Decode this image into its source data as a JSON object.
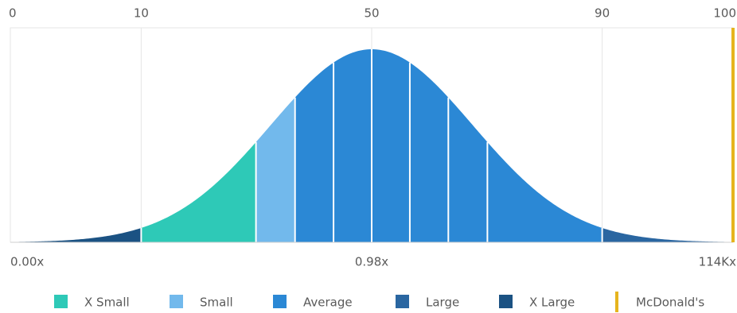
{
  "chart_data": {
    "type": "distribution",
    "xlim": [
      0,
      100
    ],
    "xticks": [
      0,
      10,
      50,
      90,
      100
    ],
    "multiple_ticks": [
      {
        "value": 0,
        "label": "0.00x"
      },
      {
        "value": 50,
        "label": "0.98x"
      },
      {
        "value": 100,
        "label": "114Kx"
      }
    ],
    "grid": true,
    "series": [
      {
        "name": "X Small",
        "color": "#2ec9b7",
        "ranges": [
          [
            10,
            26
          ]
        ]
      },
      {
        "name": "Small",
        "color": "#72b9ec",
        "ranges": [
          [
            26,
            33.5
          ]
        ]
      },
      {
        "name": "Average",
        "color": "#2b88d5",
        "ranges": [
          [
            33.5,
            41.6
          ],
          [
            41.6,
            50
          ],
          [
            50,
            58.4
          ],
          [
            58.4,
            66.5
          ],
          [
            66.5,
            74
          ],
          [
            74,
            90
          ]
        ]
      },
      {
        "name": "Large",
        "color": "#2a66a1",
        "ranges": [
          [
            90,
            100
          ]
        ]
      },
      {
        "name": "X Large",
        "color": "#1b5283",
        "ranges": [
          [
            0,
            10
          ]
        ]
      }
    ],
    "marker": {
      "name": "McDonald's",
      "color": "#e6b41e",
      "value": 100
    }
  }
}
